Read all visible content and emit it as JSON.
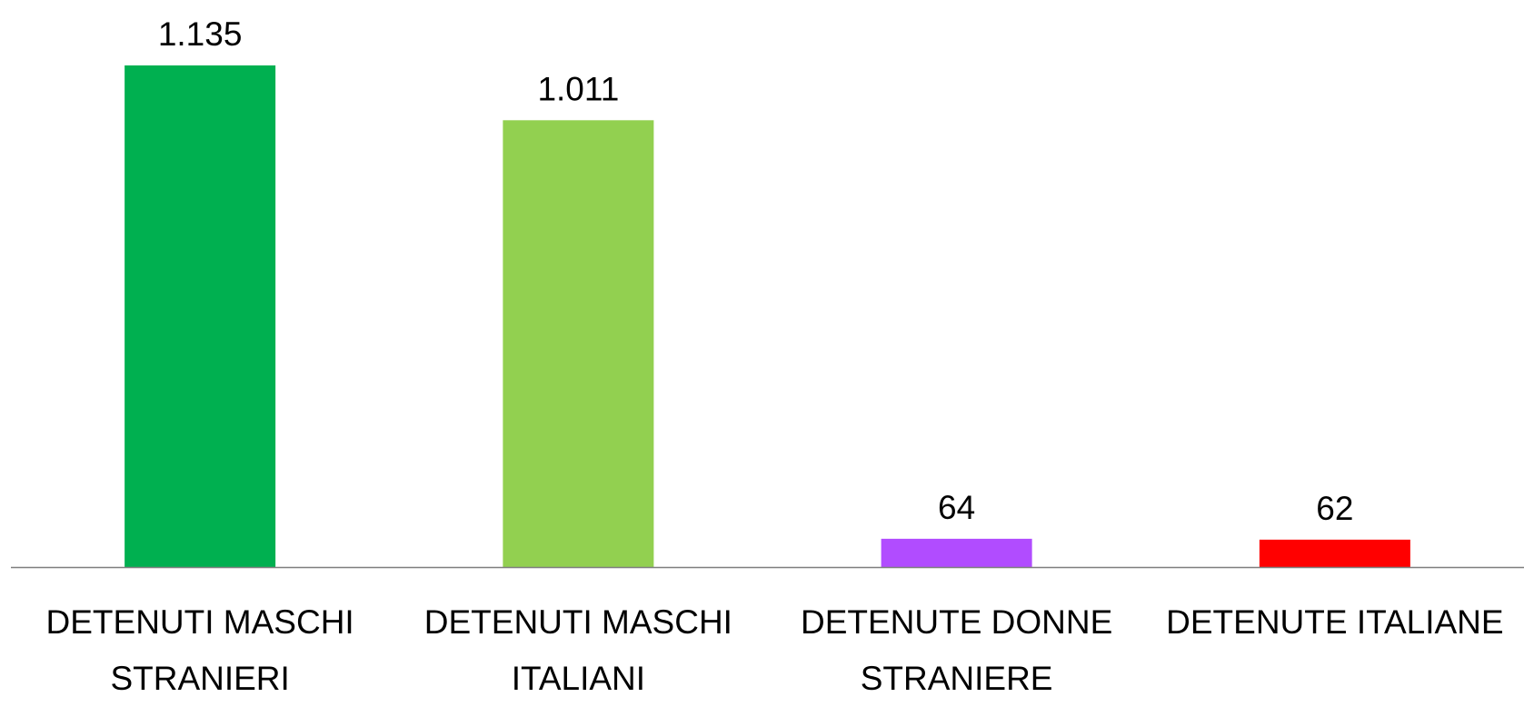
{
  "chart_data": {
    "type": "bar",
    "categories": [
      "DETENUTI MASCHI STRANIERI",
      "DETENUTI MASCHI ITALIANI",
      "DETENUTE DONNE STRANIERE",
      "DETENUTE ITALIANE"
    ],
    "values": [
      1135,
      1011,
      64,
      62
    ],
    "value_labels": [
      "1.135",
      "1.011",
      "64",
      "62"
    ],
    "colors": [
      "#00b050",
      "#92d050",
      "#b14cff",
      "#ff0000"
    ]
  }
}
